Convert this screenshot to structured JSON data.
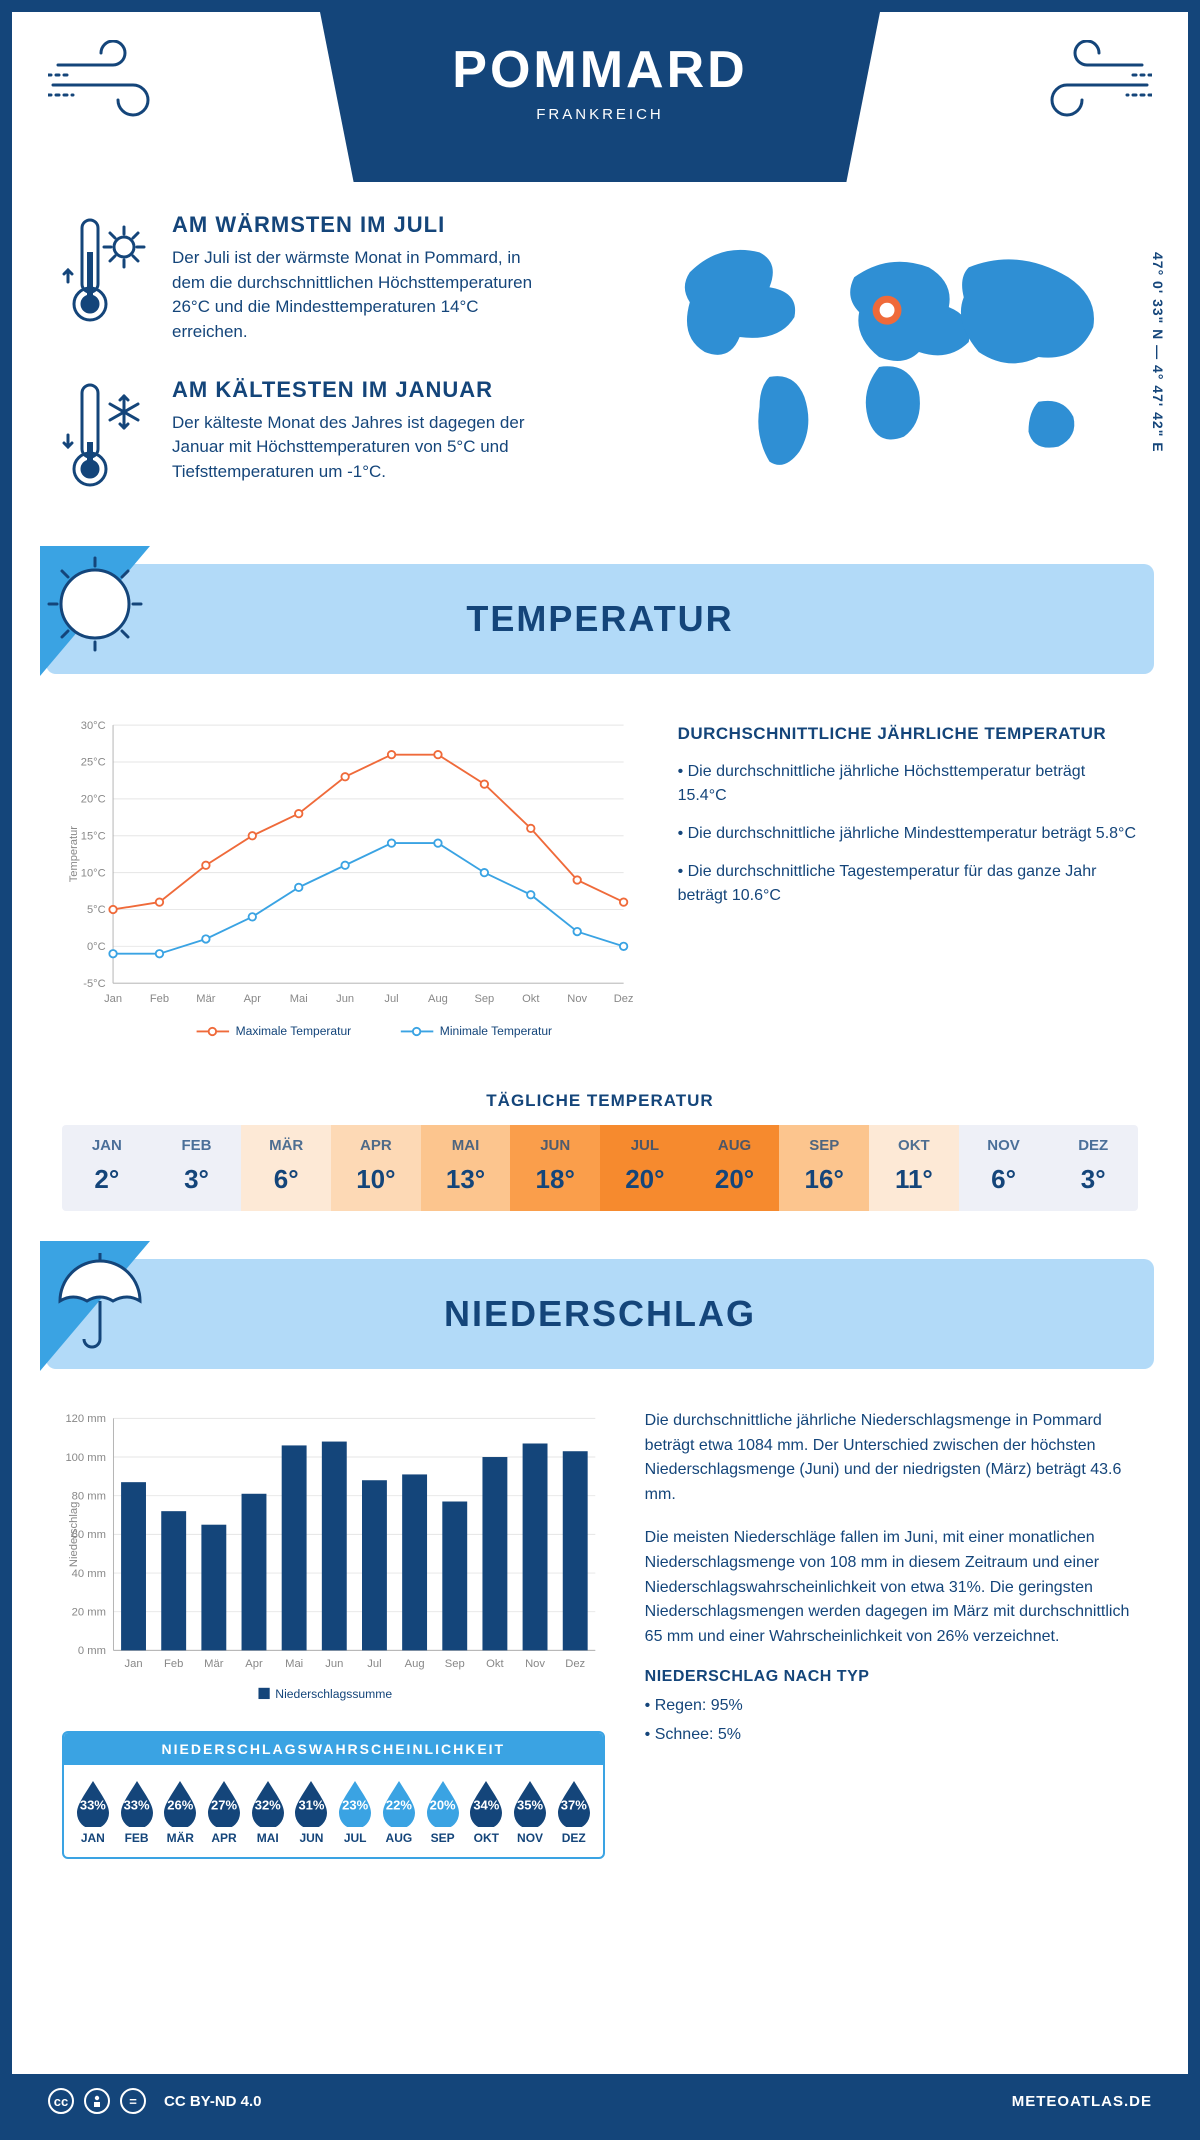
{
  "header": {
    "city": "POMMARD",
    "country": "FRANKREICH",
    "coords": "47° 0' 33\" N — 4° 47' 42\" E"
  },
  "intro": {
    "warm": {
      "title": "AM WÄRMSTEN IM JULI",
      "text": "Der Juli ist der wärmste Monat in Pommard, in dem die durchschnittlichen Höchsttemperaturen 26°C und die Mindesttemperaturen 14°C erreichen."
    },
    "cold": {
      "title": "AM KÄLTESTEN IM JANUAR",
      "text": "Der kälteste Monat des Jahres ist dagegen der Januar mit Höchsttemperaturen von 5°C und Tiefsttemperaturen um -1°C."
    }
  },
  "sections": {
    "temperature": "TEMPERATUR",
    "precip": "NIEDERSCHLAG"
  },
  "temp_chart": {
    "type": "line",
    "months": [
      "Jan",
      "Feb",
      "Mär",
      "Apr",
      "Mai",
      "Jun",
      "Jul",
      "Aug",
      "Sep",
      "Okt",
      "Nov",
      "Dez"
    ],
    "max_series": [
      5,
      6,
      11,
      15,
      18,
      23,
      26,
      26,
      22,
      16,
      9,
      6
    ],
    "min_series": [
      -1,
      -1,
      1,
      4,
      8,
      11,
      14,
      14,
      10,
      7,
      2,
      0
    ],
    "ylim": [
      -5,
      30
    ],
    "ytick_step": 5,
    "ylabel": "Temperatur",
    "max_color": "#ef6a3a",
    "min_color": "#3aa3e3",
    "legend_max": "Maximale Temperatur",
    "legend_min": "Minimale Temperatur",
    "grid_color": "#e5e5e5",
    "axis_color": "#b0b0b0",
    "label_color": "#888888",
    "label_fontsize": 12
  },
  "temp_text": {
    "title": "DURCHSCHNITTLICHE JÄHRLICHE TEMPERATUR",
    "bullets": [
      "• Die durchschnittliche jährliche Höchsttemperatur beträgt 15.4°C",
      "• Die durchschnittliche jährliche Mindesttemperatur beträgt 5.8°C",
      "• Die durchschnittliche Tagestemperatur für das ganze Jahr beträgt 10.6°C"
    ]
  },
  "daily": {
    "title": "TÄGLICHE TEMPERATUR",
    "months": [
      "JAN",
      "FEB",
      "MÄR",
      "APR",
      "MAI",
      "JUN",
      "JUL",
      "AUG",
      "SEP",
      "OKT",
      "NOV",
      "DEZ"
    ],
    "values": [
      "2°",
      "3°",
      "6°",
      "10°",
      "13°",
      "18°",
      "20°",
      "20°",
      "16°",
      "11°",
      "6°",
      "3°"
    ],
    "colors": [
      "#eef0f7",
      "#eef0f7",
      "#fde9d6",
      "#fdd9b5",
      "#fcc58e",
      "#fa9e4b",
      "#f68a2e",
      "#f68a2e",
      "#fcc58e",
      "#fde9d6",
      "#eef0f7",
      "#eef0f7"
    ]
  },
  "precip_chart": {
    "type": "bar",
    "months": [
      "Jan",
      "Feb",
      "Mär",
      "Apr",
      "Mai",
      "Jun",
      "Jul",
      "Aug",
      "Sep",
      "Okt",
      "Nov",
      "Dez"
    ],
    "values": [
      87,
      72,
      65,
      81,
      106,
      108,
      88,
      91,
      77,
      100,
      107,
      103
    ],
    "ylim": [
      0,
      120
    ],
    "ytick_step": 20,
    "ylabel": "Niederschlag",
    "bar_color": "#14457a",
    "legend": "Niederschlagssumme",
    "grid_color": "#e5e5e5",
    "axis_color": "#b0b0b0",
    "label_fontsize": 12,
    "bar_width": 0.62
  },
  "precip_text": {
    "p1": "Die durchschnittliche jährliche Niederschlagsmenge in Pommard beträgt etwa 1084 mm. Der Unterschied zwischen der höchsten Niederschlagsmenge (Juni) und der niedrigsten (März) beträgt 43.6 mm.",
    "p2": "Die meisten Niederschläge fallen im Juni, mit einer monatlichen Niederschlagsmenge von 108 mm in diesem Zeitraum und einer Niederschlagswahrscheinlichkeit von etwa 31%. Die geringsten Niederschlagsmengen werden dagegen im März mit durchschnittlich 65 mm und einer Wahrscheinlichkeit von 26% verzeichnet.",
    "type_title": "NIEDERSCHLAG NACH TYP",
    "type_items": [
      "• Regen: 95%",
      "• Schnee: 5%"
    ]
  },
  "prob": {
    "title": "NIEDERSCHLAGSWAHRSCHEINLICHKEIT",
    "months": [
      "JAN",
      "FEB",
      "MÄR",
      "APR",
      "MAI",
      "JUN",
      "JUL",
      "AUG",
      "SEP",
      "OKT",
      "NOV",
      "DEZ"
    ],
    "values": [
      "33%",
      "33%",
      "26%",
      "27%",
      "32%",
      "31%",
      "23%",
      "22%",
      "20%",
      "34%",
      "35%",
      "37%"
    ],
    "colors": [
      "#14457a",
      "#14457a",
      "#14457a",
      "#14457a",
      "#14457a",
      "#14457a",
      "#3aa3e3",
      "#3aa3e3",
      "#3aa3e3",
      "#14457a",
      "#14457a",
      "#14457a"
    ]
  },
  "footer": {
    "license": "CC BY-ND 4.0",
    "site": "METEOATLAS.DE"
  },
  "colors": {
    "primary": "#14457a",
    "accent": "#3aa3e3",
    "light_blue": "#b2daf8",
    "orange": "#ef6a3a"
  }
}
